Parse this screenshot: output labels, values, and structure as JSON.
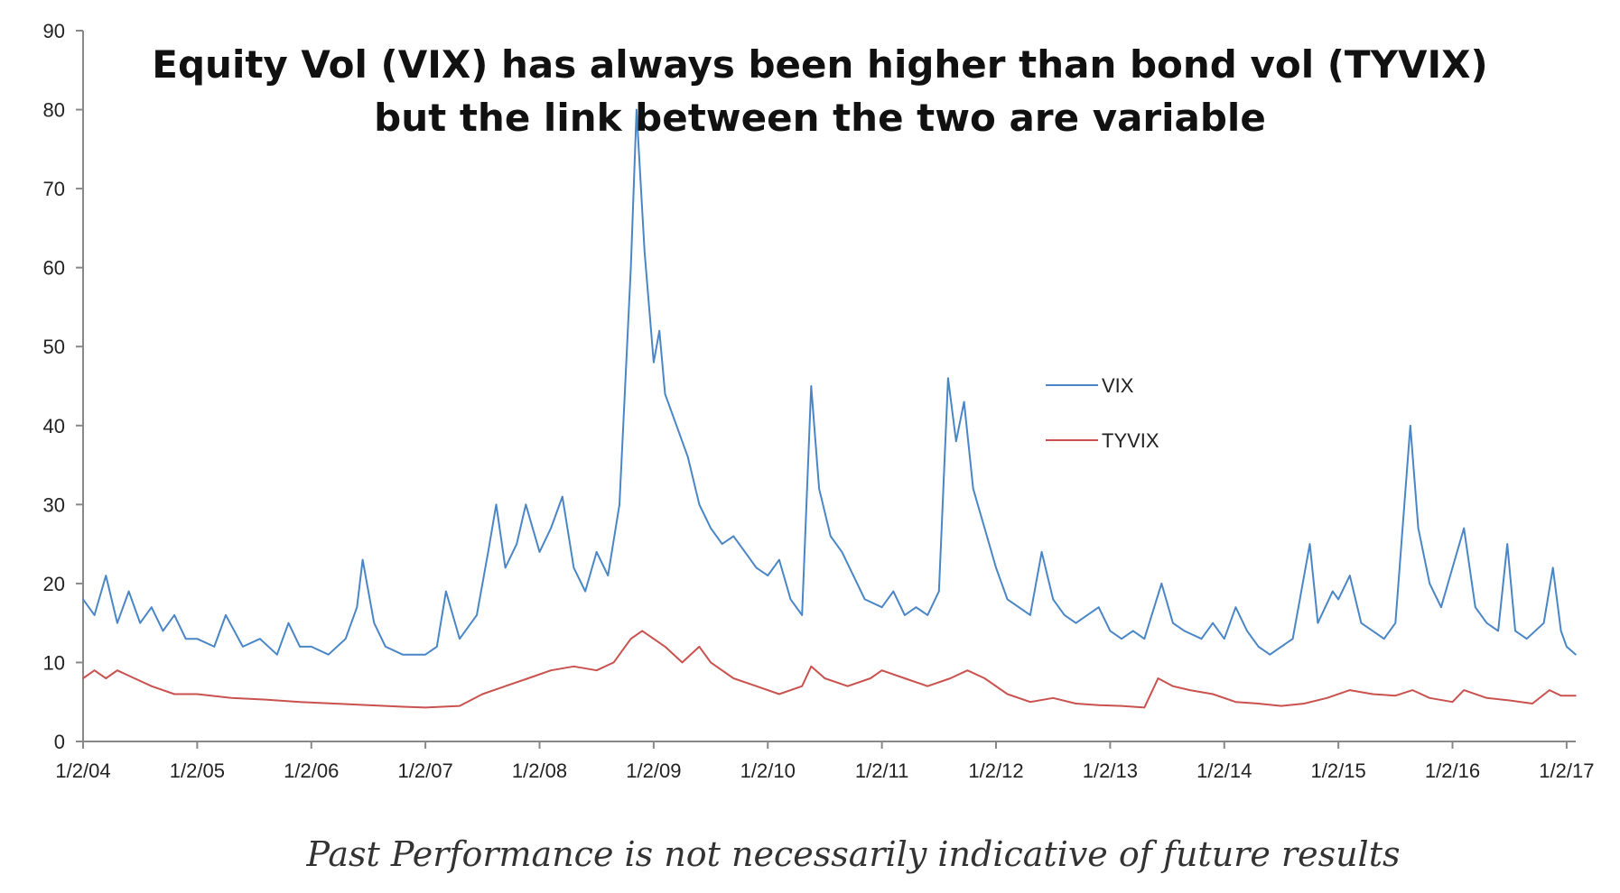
{
  "chart_data": {
    "type": "line",
    "title": [
      "Equity Vol (VIX) has always been higher than bond vol (TYVIX)",
      "but the link between the two are variable"
    ],
    "footnote": "Past Performance is not necessarily indicative of future results",
    "xlabel": "",
    "ylabel": "",
    "ylim": [
      0,
      90
    ],
    "yticks": [
      0,
      10,
      20,
      30,
      40,
      50,
      60,
      70,
      80,
      90
    ],
    "xlim": [
      2004.0,
      2017.08
    ],
    "xticks": [
      {
        "x": 2004,
        "label": "1/2/04"
      },
      {
        "x": 2005,
        "label": "1/2/05"
      },
      {
        "x": 2006,
        "label": "1/2/06"
      },
      {
        "x": 2007,
        "label": "1/2/07"
      },
      {
        "x": 2008,
        "label": "1/2/08"
      },
      {
        "x": 2009,
        "label": "1/2/09"
      },
      {
        "x": 2010,
        "label": "1/2/10"
      },
      {
        "x": 2011,
        "label": "1/2/11"
      },
      {
        "x": 2012,
        "label": "1/2/12"
      },
      {
        "x": 2013,
        "label": "1/2/13"
      },
      {
        "x": 2014,
        "label": "1/2/14"
      },
      {
        "x": 2015,
        "label": "1/2/15"
      },
      {
        "x": 2016,
        "label": "1/2/16"
      },
      {
        "x": 2017,
        "label": "1/2/17"
      }
    ],
    "grid": false,
    "legend_position": "center-right",
    "series": [
      {
        "name": "VIX",
        "color": "#4a86c6",
        "points": [
          [
            2004.0,
            18
          ],
          [
            2004.1,
            16
          ],
          [
            2004.2,
            21
          ],
          [
            2004.3,
            15
          ],
          [
            2004.4,
            19
          ],
          [
            2004.5,
            15
          ],
          [
            2004.6,
            17
          ],
          [
            2004.7,
            14
          ],
          [
            2004.8,
            16
          ],
          [
            2004.9,
            13
          ],
          [
            2005.0,
            13
          ],
          [
            2005.15,
            12
          ],
          [
            2005.25,
            16
          ],
          [
            2005.4,
            12
          ],
          [
            2005.55,
            13
          ],
          [
            2005.7,
            11
          ],
          [
            2005.8,
            15
          ],
          [
            2005.9,
            12
          ],
          [
            2006.0,
            12
          ],
          [
            2006.15,
            11
          ],
          [
            2006.3,
            13
          ],
          [
            2006.4,
            17
          ],
          [
            2006.45,
            23
          ],
          [
            2006.55,
            15
          ],
          [
            2006.65,
            12
          ],
          [
            2006.8,
            11
          ],
          [
            2007.0,
            11
          ],
          [
            2007.1,
            12
          ],
          [
            2007.18,
            19
          ],
          [
            2007.3,
            13
          ],
          [
            2007.45,
            16
          ],
          [
            2007.55,
            24
          ],
          [
            2007.62,
            30
          ],
          [
            2007.7,
            22
          ],
          [
            2007.8,
            25
          ],
          [
            2007.88,
            30
          ],
          [
            2008.0,
            24
          ],
          [
            2008.1,
            27
          ],
          [
            2008.2,
            31
          ],
          [
            2008.3,
            22
          ],
          [
            2008.4,
            19
          ],
          [
            2008.5,
            24
          ],
          [
            2008.6,
            21
          ],
          [
            2008.7,
            30
          ],
          [
            2008.75,
            45
          ],
          [
            2008.8,
            60
          ],
          [
            2008.85,
            80
          ],
          [
            2008.92,
            62
          ],
          [
            2009.0,
            48
          ],
          [
            2009.05,
            52
          ],
          [
            2009.1,
            44
          ],
          [
            2009.2,
            40
          ],
          [
            2009.3,
            36
          ],
          [
            2009.4,
            30
          ],
          [
            2009.5,
            27
          ],
          [
            2009.6,
            25
          ],
          [
            2009.7,
            26
          ],
          [
            2009.8,
            24
          ],
          [
            2009.9,
            22
          ],
          [
            2010.0,
            21
          ],
          [
            2010.1,
            23
          ],
          [
            2010.2,
            18
          ],
          [
            2010.3,
            16
          ],
          [
            2010.38,
            45
          ],
          [
            2010.45,
            32
          ],
          [
            2010.55,
            26
          ],
          [
            2010.65,
            24
          ],
          [
            2010.75,
            21
          ],
          [
            2010.85,
            18
          ],
          [
            2011.0,
            17
          ],
          [
            2011.1,
            19
          ],
          [
            2011.2,
            16
          ],
          [
            2011.3,
            17
          ],
          [
            2011.4,
            16
          ],
          [
            2011.5,
            19
          ],
          [
            2011.58,
            46
          ],
          [
            2011.65,
            38
          ],
          [
            2011.72,
            43
          ],
          [
            2011.8,
            32
          ],
          [
            2011.9,
            27
          ],
          [
            2012.0,
            22
          ],
          [
            2012.1,
            18
          ],
          [
            2012.2,
            17
          ],
          [
            2012.3,
            16
          ],
          [
            2012.4,
            24
          ],
          [
            2012.5,
            18
          ],
          [
            2012.6,
            16
          ],
          [
            2012.7,
            15
          ],
          [
            2012.8,
            16
          ],
          [
            2012.9,
            17
          ],
          [
            2013.0,
            14
          ],
          [
            2013.1,
            13
          ],
          [
            2013.2,
            14
          ],
          [
            2013.3,
            13
          ],
          [
            2013.45,
            20
          ],
          [
            2013.55,
            15
          ],
          [
            2013.65,
            14
          ],
          [
            2013.8,
            13
          ],
          [
            2013.9,
            15
          ],
          [
            2014.0,
            13
          ],
          [
            2014.1,
            17
          ],
          [
            2014.2,
            14
          ],
          [
            2014.3,
            12
          ],
          [
            2014.4,
            11
          ],
          [
            2014.5,
            12
          ],
          [
            2014.6,
            13
          ],
          [
            2014.75,
            25
          ],
          [
            2014.82,
            15
          ],
          [
            2014.95,
            19
          ],
          [
            2015.0,
            18
          ],
          [
            2015.1,
            21
          ],
          [
            2015.2,
            15
          ],
          [
            2015.3,
            14
          ],
          [
            2015.4,
            13
          ],
          [
            2015.5,
            15
          ],
          [
            2015.63,
            40
          ],
          [
            2015.7,
            27
          ],
          [
            2015.8,
            20
          ],
          [
            2015.9,
            17
          ],
          [
            2016.0,
            22
          ],
          [
            2016.1,
            27
          ],
          [
            2016.2,
            17
          ],
          [
            2016.3,
            15
          ],
          [
            2016.4,
            14
          ],
          [
            2016.48,
            25
          ],
          [
            2016.55,
            14
          ],
          [
            2016.65,
            13
          ],
          [
            2016.8,
            15
          ],
          [
            2016.88,
            22
          ],
          [
            2016.95,
            14
          ],
          [
            2017.0,
            12
          ],
          [
            2017.08,
            11
          ]
        ]
      },
      {
        "name": "TYVIX",
        "color": "#c9524e",
        "points": [
          [
            2004.0,
            8
          ],
          [
            2004.1,
            9
          ],
          [
            2004.2,
            8
          ],
          [
            2004.3,
            9
          ],
          [
            2004.45,
            8
          ],
          [
            2004.6,
            7
          ],
          [
            2004.8,
            6
          ],
          [
            2005.0,
            6
          ],
          [
            2005.3,
            5.5
          ],
          [
            2005.6,
            5.3
          ],
          [
            2005.9,
            5
          ],
          [
            2006.2,
            4.8
          ],
          [
            2006.5,
            4.6
          ],
          [
            2006.8,
            4.4
          ],
          [
            2007.0,
            4.3
          ],
          [
            2007.3,
            4.5
          ],
          [
            2007.5,
            6
          ],
          [
            2007.7,
            7
          ],
          [
            2007.9,
            8
          ],
          [
            2008.1,
            9
          ],
          [
            2008.3,
            9.5
          ],
          [
            2008.5,
            9
          ],
          [
            2008.65,
            10
          ],
          [
            2008.8,
            13
          ],
          [
            2008.9,
            14
          ],
          [
            2009.0,
            13
          ],
          [
            2009.1,
            12
          ],
          [
            2009.25,
            10
          ],
          [
            2009.4,
            12
          ],
          [
            2009.5,
            10
          ],
          [
            2009.7,
            8
          ],
          [
            2009.9,
            7
          ],
          [
            2010.1,
            6
          ],
          [
            2010.3,
            7
          ],
          [
            2010.38,
            9.5
          ],
          [
            2010.5,
            8
          ],
          [
            2010.7,
            7
          ],
          [
            2010.9,
            8
          ],
          [
            2011.0,
            9
          ],
          [
            2011.2,
            8
          ],
          [
            2011.4,
            7
          ],
          [
            2011.6,
            8
          ],
          [
            2011.75,
            9
          ],
          [
            2011.9,
            8
          ],
          [
            2012.1,
            6
          ],
          [
            2012.3,
            5
          ],
          [
            2012.5,
            5.5
          ],
          [
            2012.7,
            4.8
          ],
          [
            2012.9,
            4.6
          ],
          [
            2013.1,
            4.5
          ],
          [
            2013.3,
            4.3
          ],
          [
            2013.42,
            8
          ],
          [
            2013.55,
            7
          ],
          [
            2013.7,
            6.5
          ],
          [
            2013.9,
            6
          ],
          [
            2014.1,
            5
          ],
          [
            2014.3,
            4.8
          ],
          [
            2014.5,
            4.5
          ],
          [
            2014.7,
            4.8
          ],
          [
            2014.9,
            5.5
          ],
          [
            2015.1,
            6.5
          ],
          [
            2015.3,
            6
          ],
          [
            2015.5,
            5.8
          ],
          [
            2015.65,
            6.5
          ],
          [
            2015.8,
            5.5
          ],
          [
            2016.0,
            5
          ],
          [
            2016.1,
            6.5
          ],
          [
            2016.3,
            5.5
          ],
          [
            2016.5,
            5.2
          ],
          [
            2016.7,
            4.8
          ],
          [
            2016.85,
            6.5
          ],
          [
            2016.95,
            5.8
          ],
          [
            2017.08,
            5.8
          ]
        ]
      }
    ]
  }
}
